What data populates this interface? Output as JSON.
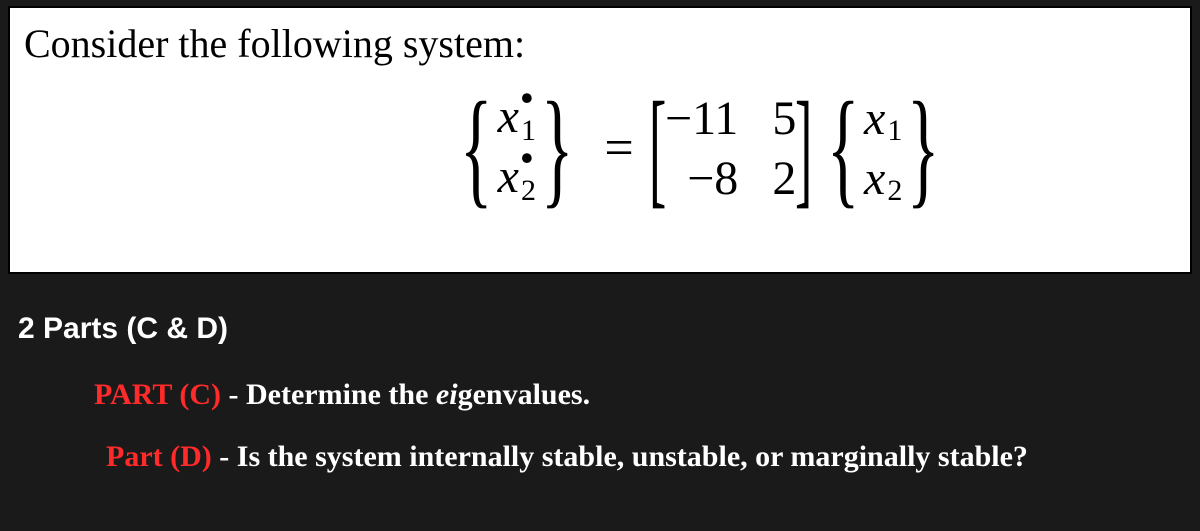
{
  "problem": {
    "prompt": "Consider the following system:",
    "equation": {
      "lhs": {
        "entries": [
          "ẋ₁",
          "ẋ₂"
        ],
        "x1_base": "x",
        "x1_sub": "1",
        "x2_base": "x",
        "x2_sub": "2"
      },
      "matrix": {
        "a11": "−11",
        "a12": "5",
        "a21": "−8",
        "a22": "2"
      },
      "rhs": {
        "x1_base": "x",
        "x1_sub": "1",
        "x2_base": "x",
        "x2_sub": "2"
      },
      "equals": "="
    }
  },
  "parts": {
    "header": "2 Parts (C & D)",
    "c": {
      "label": "PART (C)",
      "dash": " - ",
      "text1": "Determine the ",
      "eigen_prefix": "ei",
      "eigen_rest": "genvalues",
      "period": "."
    },
    "d": {
      "label": "Part (D)",
      "dash": " - ",
      "text": "Is the system internally stable, unstable, or marginally stable?"
    }
  },
  "colors": {
    "bg_dark": "#1a1a1a",
    "bg_light": "#ffffff",
    "text_dark": "#000000",
    "text_light": "#ffffff",
    "red": "#ff2a2a"
  }
}
